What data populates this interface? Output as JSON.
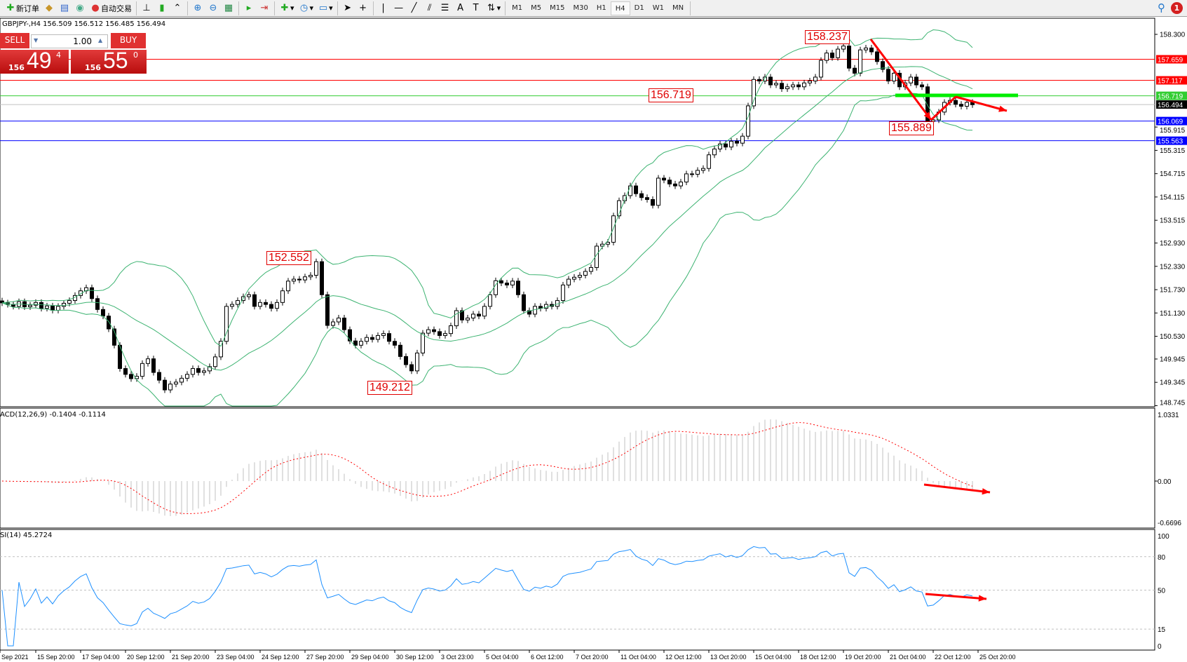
{
  "toolbar": {
    "new_order": "新订单",
    "auto_trading": "自动交易",
    "timeframes": [
      "M1",
      "M5",
      "M15",
      "M30",
      "H1",
      "H4",
      "D1",
      "W1",
      "MN"
    ],
    "selected_timeframe": "H4",
    "notification_count": "1"
  },
  "chart": {
    "title": "GBPJPY-,H4  156.509 156.512 156.485 156.494",
    "trade_panel": {
      "sell": "SELL",
      "buy": "BUY",
      "lot": "1.00",
      "sell_prefix": "156",
      "sell_big": "49",
      "sell_sup": "4",
      "buy_prefix": "156",
      "buy_big": "55",
      "buy_sup": "0"
    },
    "price_ticks": [
      "158.300",
      "155.915",
      "155.315",
      "154.715",
      "154.115",
      "153.515",
      "152.930",
      "152.330",
      "151.730",
      "151.130",
      "150.530",
      "149.945",
      "149.345",
      "148.745"
    ],
    "price_tick_values": [
      158.3,
      155.915,
      155.315,
      154.715,
      154.115,
      153.515,
      152.93,
      152.33,
      151.73,
      151.13,
      150.53,
      149.945,
      149.345,
      148.745
    ],
    "hlines": [
      {
        "price": "157.659",
        "color": "#ff0000"
      },
      {
        "price": "157.117",
        "color": "#ff0000"
      },
      {
        "price": "156.719",
        "color": "#32cd32"
      },
      {
        "price": "156.494",
        "color": "#000000",
        "line": "#c0c0c0"
      },
      {
        "price": "156.069",
        "color": "#0000ff"
      },
      {
        "price": "155.563",
        "color": "#0000ff"
      }
    ],
    "annotations": [
      "158.237",
      "156.719",
      "155.889",
      "152.552",
      "149.212"
    ],
    "closes": [
      151.39,
      151.35,
      151.3,
      151.42,
      151.29,
      151.33,
      151.4,
      151.25,
      151.31,
      151.2,
      151.3,
      151.38,
      151.45,
      151.58,
      151.7,
      151.78,
      151.5,
      151.22,
      151.05,
      150.72,
      150.3,
      149.7,
      149.55,
      149.44,
      149.5,
      149.83,
      149.95,
      149.6,
      149.4,
      149.15,
      149.3,
      149.35,
      149.45,
      149.55,
      149.7,
      149.6,
      149.64,
      149.75,
      150.0,
      150.4,
      151.3,
      151.35,
      151.45,
      151.55,
      151.6,
      151.3,
      151.4,
      151.35,
      151.25,
      151.4,
      151.7,
      151.95,
      152.0,
      151.98,
      152.06,
      152.1,
      152.45,
      151.6,
      150.81,
      150.9,
      151.0,
      150.7,
      150.41,
      150.3,
      150.4,
      150.5,
      150.45,
      150.55,
      150.6,
      150.4,
      150.3,
      150.01,
      149.8,
      149.64,
      150.1,
      150.61,
      150.7,
      150.65,
      150.55,
      150.6,
      150.8,
      151.19,
      150.95,
      151.0,
      151.1,
      151.05,
      151.3,
      151.6,
      151.96,
      151.9,
      151.85,
      151.95,
      151.6,
      151.19,
      151.1,
      151.3,
      151.25,
      151.35,
      151.3,
      151.45,
      151.85,
      152.0,
      152.05,
      152.1,
      152.2,
      152.3,
      152.85,
      152.9,
      152.95,
      153.63,
      154.02,
      154.15,
      154.4,
      154.2,
      154.1,
      154.05,
      153.9,
      154.6,
      154.55,
      154.45,
      154.4,
      154.5,
      154.71,
      154.7,
      154.8,
      154.85,
      155.2,
      155.35,
      155.48,
      155.4,
      155.55,
      155.5,
      155.68,
      156.46,
      157.14,
      157.1,
      157.2,
      157.0,
      157.04,
      156.9,
      156.95,
      157.0,
      156.95,
      157.05,
      157.1,
      157.2,
      157.63,
      157.82,
      157.7,
      157.92,
      158.0,
      157.43,
      157.3,
      157.9,
      157.95,
      157.85,
      157.6,
      157.4,
      157.1,
      157.3,
      156.95,
      157.05,
      157.2,
      157.0,
      156.95,
      156.06,
      156.1,
      156.3,
      156.55,
      156.6,
      156.5,
      156.45,
      156.55,
      156.49
    ],
    "colors": {
      "bands": "#3cb371",
      "arrow": "#ff0000",
      "support_bar": "#00ee00"
    }
  },
  "macd": {
    "label": "ACD(12,26,9) -0.1404 -0.1114",
    "ticks": [
      "1.0331",
      "0.00",
      "-0.6696"
    ],
    "range": [
      -0.6696,
      1.0331
    ],
    "histogram_color": "#c0c0c0",
    "signal_color": "#ff0000"
  },
  "rsi": {
    "label": "SI(14) 45.2724",
    "ticks": [
      "100",
      "80",
      "50",
      "15",
      "0"
    ],
    "levels": [
      80,
      50,
      15
    ],
    "color": "#1e90ff"
  },
  "time_axis": [
    "Sep 2021",
    "15 Sep 20:00",
    "17 Sep 04:00",
    "20 Sep 12:00",
    "21 Sep 20:00",
    "23 Sep 04:00",
    "24 Sep 12:00",
    "27 Sep 20:00",
    "29 Sep 04:00",
    "30 Sep 12:00",
    "3 Oct 23:00",
    "5 Oct 04:00",
    "6 Oct 12:00",
    "7 Oct 20:00",
    "11 Oct 04:00",
    "12 Oct 12:00",
    "13 Oct 20:00",
    "15 Oct 04:00",
    "18 Oct 12:00",
    "19 Oct 20:00",
    "21 Oct 04:00",
    "22 Oct 12:00",
    "25 Oct 20:00"
  ]
}
